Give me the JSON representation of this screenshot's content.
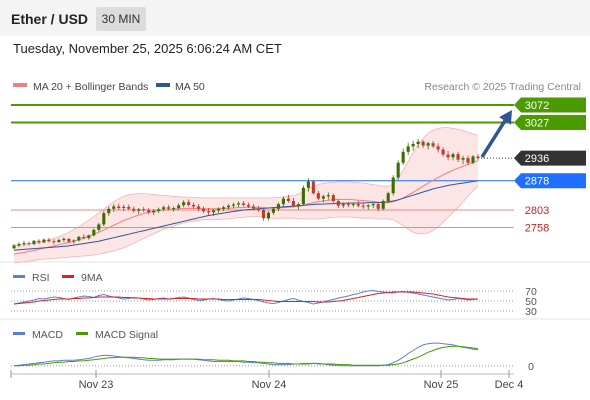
{
  "header": {
    "title": "Ether / USD",
    "timeframe": "30 MIN"
  },
  "datetime": "Tuesday, November 25, 2025 6:06:24 AM CET",
  "legend": {
    "ma20": "MA 20 + Bollinger Bands",
    "ma50": "MA 50",
    "credit": "Research © 2025 Trading Central"
  },
  "colors": {
    "ma20": "#f08080",
    "ma50": "#2f5597",
    "target": "#4a9a00",
    "current": "#333333",
    "pivot": "#1e6eff",
    "support": "#cc2222",
    "rsi": "#5b7fd6",
    "rsi_ma": "#dd2222",
    "macd": "#5b7fd6",
    "macd_signal": "#4a9a00"
  },
  "chart_data": {
    "type": "candlestick",
    "x_ticks": [
      "Nov 23",
      "Nov 24",
      "Nov 25",
      "Dec 4"
    ],
    "ohlc": [
      [
        2705,
        2716,
        2702,
        2712
      ],
      [
        2712,
        2720,
        2708,
        2716
      ],
      [
        2716,
        2724,
        2710,
        2718
      ],
      [
        2718,
        2722,
        2712,
        2716
      ],
      [
        2716,
        2726,
        2713,
        2724
      ],
      [
        2724,
        2728,
        2716,
        2720
      ],
      [
        2720,
        2730,
        2718,
        2727
      ],
      [
        2727,
        2732,
        2720,
        2723
      ],
      [
        2723,
        2728,
        2715,
        2721
      ],
      [
        2721,
        2730,
        2718,
        2726
      ],
      [
        2726,
        2733,
        2721,
        2729
      ],
      [
        2729,
        2731,
        2718,
        2722
      ],
      [
        2722,
        2728,
        2716,
        2725
      ],
      [
        2725,
        2737,
        2722,
        2734
      ],
      [
        2734,
        2741,
        2728,
        2731
      ],
      [
        2731,
        2740,
        2727,
        2738
      ],
      [
        2738,
        2755,
        2735,
        2752
      ],
      [
        2752,
        2770,
        2748,
        2766
      ],
      [
        2766,
        2800,
        2762,
        2795
      ],
      [
        2795,
        2812,
        2788,
        2806
      ],
      [
        2806,
        2818,
        2798,
        2812
      ],
      [
        2812,
        2820,
        2803,
        2808
      ],
      [
        2808,
        2816,
        2800,
        2811
      ],
      [
        2811,
        2817,
        2802,
        2806
      ],
      [
        2806,
        2812,
        2796,
        2801
      ],
      [
        2801,
        2808,
        2792,
        2805
      ],
      [
        2805,
        2811,
        2798,
        2803
      ],
      [
        2803,
        2808,
        2792,
        2797
      ],
      [
        2797,
        2805,
        2790,
        2801
      ],
      [
        2801,
        2809,
        2795,
        2805
      ],
      [
        2805,
        2814,
        2800,
        2810
      ],
      [
        2810,
        2816,
        2802,
        2806
      ],
      [
        2806,
        2812,
        2799,
        2808
      ],
      [
        2808,
        2820,
        2804,
        2815
      ],
      [
        2815,
        2828,
        2810,
        2823
      ],
      [
        2823,
        2830,
        2812,
        2816
      ],
      [
        2816,
        2822,
        2806,
        2812
      ],
      [
        2812,
        2818,
        2800,
        2806
      ],
      [
        2806,
        2812,
        2795,
        2800
      ],
      [
        2800,
        2808,
        2790,
        2797
      ],
      [
        2797,
        2805,
        2788,
        2802
      ],
      [
        2802,
        2810,
        2796,
        2806
      ],
      [
        2806,
        2814,
        2800,
        2810
      ],
      [
        2810,
        2818,
        2804,
        2814
      ],
      [
        2814,
        2822,
        2808,
        2817
      ],
      [
        2817,
        2825,
        2810,
        2820
      ],
      [
        2820,
        2826,
        2812,
        2816
      ],
      [
        2816,
        2822,
        2808,
        2812
      ],
      [
        2812,
        2818,
        2802,
        2807
      ],
      [
        2807,
        2813,
        2798,
        2803
      ],
      [
        2803,
        2808,
        2775,
        2782
      ],
      [
        2782,
        2800,
        2776,
        2796
      ],
      [
        2796,
        2810,
        2790,
        2806
      ],
      [
        2806,
        2822,
        2800,
        2818
      ],
      [
        2818,
        2838,
        2812,
        2832
      ],
      [
        2832,
        2842,
        2822,
        2826
      ],
      [
        2826,
        2834,
        2810,
        2814
      ],
      [
        2814,
        2822,
        2804,
        2818
      ],
      [
        2818,
        2866,
        2814,
        2860
      ],
      [
        2860,
        2884,
        2850,
        2876
      ],
      [
        2876,
        2880,
        2842,
        2846
      ],
      [
        2846,
        2852,
        2828,
        2832
      ],
      [
        2832,
        2842,
        2822,
        2838
      ],
      [
        2838,
        2848,
        2830,
        2841
      ],
      [
        2841,
        2845,
        2820,
        2826
      ],
      [
        2826,
        2830,
        2808,
        2814
      ],
      [
        2814,
        2822,
        2808,
        2818
      ],
      [
        2818,
        2824,
        2810,
        2816
      ],
      [
        2816,
        2822,
        2810,
        2818
      ],
      [
        2818,
        2826,
        2810,
        2814
      ],
      [
        2814,
        2820,
        2806,
        2812
      ],
      [
        2812,
        2818,
        2804,
        2815
      ],
      [
        2815,
        2822,
        2808,
        2818
      ],
      [
        2818,
        2824,
        2800,
        2806
      ],
      [
        2806,
        2830,
        2802,
        2826
      ],
      [
        2826,
        2850,
        2822,
        2846
      ],
      [
        2846,
        2892,
        2840,
        2886
      ],
      [
        2886,
        2930,
        2880,
        2924
      ],
      [
        2924,
        2960,
        2918,
        2952
      ],
      [
        2952,
        2975,
        2944,
        2966
      ],
      [
        2966,
        2980,
        2955,
        2972
      ],
      [
        2972,
        2985,
        2962,
        2978
      ],
      [
        2978,
        2982,
        2962,
        2968
      ],
      [
        2968,
        2978,
        2958,
        2974
      ],
      [
        2974,
        2980,
        2962,
        2966
      ],
      [
        2966,
        2974,
        2950,
        2958
      ],
      [
        2958,
        2964,
        2940,
        2945
      ],
      [
        2945,
        2954,
        2930,
        2938
      ],
      [
        2938,
        2950,
        2930,
        2946
      ],
      [
        2946,
        2952,
        2926,
        2932
      ],
      [
        2932,
        2942,
        2920,
        2936
      ],
      [
        2936,
        2942,
        2918,
        2924
      ],
      [
        2924,
        2944,
        2920,
        2940
      ],
      [
        2940,
        2946,
        2930,
        2936
      ]
    ],
    "ma20": [
      2690,
      2692,
      2694,
      2697,
      2699,
      2702,
      2705,
      2708,
      2711,
      2714,
      2717,
      2720,
      2723,
      2727,
      2731,
      2736,
      2741,
      2746,
      2752,
      2758,
      2764,
      2770,
      2776,
      2781,
      2786,
      2790,
      2794,
      2797,
      2799,
      2801,
      2803,
      2804,
      2805,
      2806,
      2807,
      2807,
      2807,
      2807,
      2806,
      2806,
      2806,
      2806,
      2807,
      2807,
      2808,
      2809,
      2809,
      2810,
      2810,
      2810,
      2809,
      2808,
      2808,
      2808,
      2809,
      2810,
      2811,
      2812,
      2815,
      2819,
      2822,
      2824,
      2826,
      2828,
      2829,
      2830,
      2830,
      2830,
      2829,
      2828,
      2827,
      2826,
      2825,
      2823,
      2822,
      2822,
      2824,
      2828,
      2834,
      2841,
      2848,
      2856,
      2864,
      2872,
      2879,
      2886,
      2893,
      2899,
      2905,
      2910,
      2915,
      2920,
      2925,
      2929
    ],
    "ma50": [
      2700,
      2701,
      2702,
      2703,
      2704,
      2705,
      2706,
      2707,
      2708,
      2709,
      2710,
      2711,
      2713,
      2715,
      2717,
      2719,
      2721,
      2723,
      2726,
      2729,
      2732,
      2735,
      2738,
      2741,
      2744,
      2747,
      2750,
      2753,
      2756,
      2759,
      2762,
      2765,
      2768,
      2771,
      2774,
      2777,
      2780,
      2783,
      2786,
      2789,
      2791,
      2793,
      2795,
      2797,
      2799,
      2801,
      2803,
      2804,
      2805,
      2806,
      2807,
      2808,
      2809,
      2810,
      2811,
      2812,
      2813,
      2814,
      2815,
      2816,
      2817,
      2818,
      2818,
      2819,
      2819,
      2820,
      2820,
      2820,
      2821,
      2821,
      2821,
      2822,
      2822,
      2822,
      2823,
      2824,
      2826,
      2829,
      2833,
      2837,
      2841,
      2845,
      2849,
      2853,
      2857,
      2860,
      2863,
      2866,
      2868,
      2870,
      2872,
      2874,
      2876,
      2878
    ],
    "bb_upper": [
      2712,
      2713,
      2714,
      2716,
      2718,
      2720,
      2723,
      2726,
      2730,
      2735,
      2740,
      2746,
      2753,
      2760,
      2768,
      2777,
      2786,
      2795,
      2805,
      2815,
      2825,
      2832,
      2838,
      2842,
      2844,
      2845,
      2845,
      2844,
      2843,
      2841,
      2840,
      2839,
      2838,
      2837,
      2836,
      2836,
      2835,
      2835,
      2834,
      2834,
      2834,
      2834,
      2834,
      2834,
      2834,
      2834,
      2834,
      2834,
      2834,
      2834,
      2834,
      2834,
      2834,
      2835,
      2836,
      2838,
      2840,
      2843,
      2850,
      2858,
      2864,
      2868,
      2871,
      2873,
      2874,
      2875,
      2875,
      2875,
      2874,
      2873,
      2872,
      2870,
      2868,
      2866,
      2864,
      2864,
      2870,
      2885,
      2905,
      2928,
      2950,
      2970,
      2986,
      3000,
      3008,
      3012,
      3014,
      3014,
      3012,
      3010,
      3006,
      3002,
      2998,
      2994
    ],
    "bb_lower": [
      2668,
      2669,
      2670,
      2672,
      2674,
      2676,
      2677,
      2678,
      2679,
      2680,
      2681,
      2682,
      2683,
      2684,
      2685,
      2686,
      2688,
      2690,
      2692,
      2695,
      2698,
      2702,
      2706,
      2712,
      2718,
      2724,
      2730,
      2736,
      2742,
      2748,
      2754,
      2758,
      2762,
      2766,
      2770,
      2772,
      2774,
      2776,
      2778,
      2778,
      2778,
      2778,
      2780,
      2780,
      2782,
      2784,
      2784,
      2786,
      2786,
      2786,
      2784,
      2782,
      2782,
      2781,
      2782,
      2782,
      2782,
      2781,
      2780,
      2780,
      2780,
      2780,
      2781,
      2783,
      2784,
      2785,
      2785,
      2785,
      2784,
      2783,
      2782,
      2782,
      2782,
      2780,
      2780,
      2780,
      2778,
      2771,
      2763,
      2754,
      2746,
      2742,
      2742,
      2744,
      2750,
      2760,
      2772,
      2784,
      2798,
      2810,
      2824,
      2838,
      2852,
      2864
    ],
    "levels": [
      {
        "value": 3072,
        "label": "3072",
        "type": "target"
      },
      {
        "value": 3027,
        "label": "3027",
        "type": "target"
      },
      {
        "value": 2936,
        "label": "2936",
        "type": "current"
      },
      {
        "value": 2878,
        "label": "2878",
        "type": "pivot"
      },
      {
        "value": 2803,
        "label": "2803",
        "type": "support"
      },
      {
        "value": 2758,
        "label": "2758",
        "type": "support"
      }
    ],
    "price_range": [
      2680,
      3095
    ],
    "rsi": {
      "legend": [
        "RSI",
        "9MA"
      ],
      "ticks": [
        70,
        50,
        30
      ],
      "range": [
        20,
        80
      ],
      "rsi_values": [
        44,
        46,
        48,
        50,
        52,
        55,
        54,
        56,
        58,
        57,
        55,
        53,
        56,
        58,
        60,
        59,
        57,
        61,
        63,
        60,
        58,
        56,
        54,
        55,
        57,
        56,
        54,
        52,
        53,
        55,
        56,
        54,
        55,
        57,
        58,
        56,
        53,
        51,
        52,
        54,
        55,
        53,
        51,
        50,
        52,
        54,
        56,
        55,
        53,
        51,
        48,
        46,
        45,
        47,
        50,
        53,
        55,
        52,
        49,
        47,
        44,
        46,
        48,
        51,
        53,
        56,
        58,
        60,
        63,
        65,
        68,
        70,
        71,
        69,
        68,
        67,
        66,
        68,
        69,
        67,
        66,
        64,
        62,
        60,
        58,
        56,
        54,
        52,
        53,
        55,
        54,
        52,
        53,
        54
      ],
      "ma_values": [
        44,
        45,
        46,
        47,
        48,
        50,
        51,
        52,
        53,
        54,
        54,
        54,
        55,
        55,
        56,
        56,
        57,
        58,
        58,
        58,
        58,
        58,
        57,
        57,
        56,
        56,
        55,
        55,
        54,
        54,
        54,
        54,
        55,
        55,
        55,
        55,
        55,
        54,
        54,
        54,
        54,
        54,
        53,
        53,
        53,
        53,
        53,
        53,
        53,
        53,
        52,
        51,
        50,
        49,
        49,
        49,
        49,
        49,
        49,
        49,
        49,
        48,
        48,
        48,
        49,
        50,
        51,
        53,
        55,
        57,
        59,
        61,
        63,
        65,
        66,
        67,
        68,
        68,
        68,
        68,
        68,
        67,
        66,
        65,
        64,
        62,
        60,
        58,
        57,
        56,
        55,
        54,
        54,
        54
      ]
    },
    "macd": {
      "legend": [
        "MACD",
        "MACD Signal"
      ],
      "ticks": [
        0
      ],
      "range": [
        -10,
        42
      ],
      "macd_values": [
        0,
        1,
        2,
        3,
        4,
        5,
        6,
        7,
        8,
        8,
        9,
        9,
        9,
        10,
        11,
        12,
        14,
        16,
        17,
        17,
        16,
        15,
        14,
        13,
        12,
        11,
        10,
        9,
        9,
        9,
        10,
        10,
        10,
        11,
        11,
        11,
        11,
        10,
        9,
        8,
        7,
        7,
        7,
        7,
        7,
        7,
        6,
        6,
        5,
        5,
        4,
        3,
        2,
        2,
        2,
        2,
        3,
        3,
        4,
        4,
        4,
        3,
        3,
        2,
        1,
        1,
        0,
        0,
        0,
        0,
        0,
        0,
        0,
        0,
        1,
        2,
        5,
        9,
        14,
        20,
        25,
        30,
        34,
        36,
        37,
        37,
        36,
        35,
        34,
        32,
        30,
        29,
        27,
        26
      ],
      "signal_values": [
        0,
        0,
        1,
        1,
        2,
        3,
        3,
        4,
        5,
        6,
        6,
        7,
        7,
        8,
        8,
        9,
        10,
        11,
        12,
        13,
        13,
        14,
        14,
        14,
        14,
        13,
        13,
        12,
        12,
        11,
        11,
        11,
        11,
        11,
        11,
        11,
        11,
        11,
        10,
        10,
        10,
        9,
        9,
        9,
        8,
        8,
        8,
        7,
        7,
        6,
        6,
        5,
        5,
        4,
        4,
        4,
        3,
        3,
        3,
        3,
        4,
        4,
        3,
        3,
        3,
        2,
        2,
        2,
        1,
        1,
        1,
        1,
        1,
        1,
        1,
        1,
        2,
        3,
        5,
        8,
        11,
        14,
        18,
        22,
        25,
        28,
        30,
        31,
        32,
        32,
        31,
        30,
        29,
        28
      ]
    }
  }
}
